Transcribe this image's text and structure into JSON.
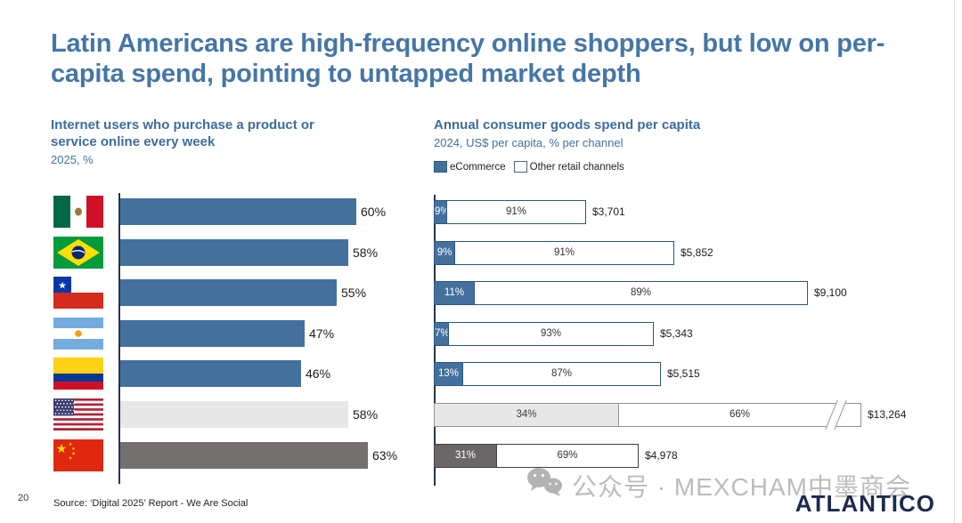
{
  "title": "Latin Americans are high-frequency online shoppers, but low on per-capita spend, pointing to untapped market depth",
  "footer": {
    "page_number": "20",
    "source": "Source: ‘Digital 2025’ Report - We Are Social"
  },
  "watermark": {
    "icon": "wechat-icon",
    "text": "公众号 · MEXCHAM中墨商会",
    "logo_text": "ATLANTICO"
  },
  "colors": {
    "title_blue": "#4576a6",
    "bar_blue": "#44709d",
    "bar_blue_border": "#2b567e",
    "benchmark_us_fill": "#e8e7e7",
    "benchmark_us_border": "#8a93a0",
    "benchmark_cn_fill": "#6b6768",
    "benchmark_cn_border": "#413f3f",
    "axis": "#26344e"
  },
  "chart_data": [
    {
      "type": "bar",
      "title": "Internet users who purchase a product or service online every week",
      "subtitle": "2025, %",
      "categories": [
        "Mexico",
        "Brazil",
        "Chile",
        "Argentina",
        "Colombia",
        "United States",
        "China"
      ],
      "flags": [
        "mexico",
        "brazil",
        "chile",
        "argentina",
        "colombia",
        "usa",
        "china"
      ],
      "values": [
        60,
        58,
        55,
        47,
        46,
        58,
        63
      ],
      "labels": [
        "60%",
        "58%",
        "55%",
        "47%",
        "46%",
        "58%",
        "63%"
      ],
      "unit": "%",
      "xlim": [
        0,
        63
      ],
      "row_styles": [
        "latam",
        "latam",
        "latam",
        "latam",
        "latam",
        "benchmark-us",
        "benchmark-cn"
      ],
      "grid": false,
      "orientation": "horizontal"
    },
    {
      "type": "stacked-bar",
      "title": "Annual consumer goods spend per capita",
      "subtitle": "2024, US$ per capita, % per channel",
      "legend": [
        "eCommerce",
        "Other retail channels"
      ],
      "categories": [
        "Mexico",
        "Brazil",
        "Chile",
        "Argentina",
        "Colombia",
        "United States",
        "China"
      ],
      "series": [
        {
          "name": "eCommerce",
          "values": [
            9,
            9,
            11,
            7,
            13,
            34,
            31
          ]
        },
        {
          "name": "Other retail channels",
          "values": [
            91,
            91,
            89,
            93,
            87,
            66,
            69
          ]
        }
      ],
      "segment_labels": [
        [
          "9%",
          "91%"
        ],
        [
          "9%",
          "91%"
        ],
        [
          "11%",
          "89%"
        ],
        [
          "7%",
          "93%"
        ],
        [
          "13%",
          "87%"
        ],
        [
          "34%",
          "66%"
        ],
        [
          "31%",
          "69%"
        ]
      ],
      "totals_usd": [
        3701,
        5852,
        9100,
        5343,
        5515,
        13264,
        4978
      ],
      "totals_labels": [
        "$3,701",
        "$5,852",
        "$9,100",
        "$5,343",
        "$5,515",
        "$13,264",
        "$4,978"
      ],
      "axis_break_rows": [
        5
      ],
      "row_styles": [
        "latam",
        "latam",
        "latam",
        "latam",
        "latam",
        "benchmark-us",
        "benchmark-cn"
      ],
      "grid": false,
      "orientation": "horizontal"
    }
  ]
}
